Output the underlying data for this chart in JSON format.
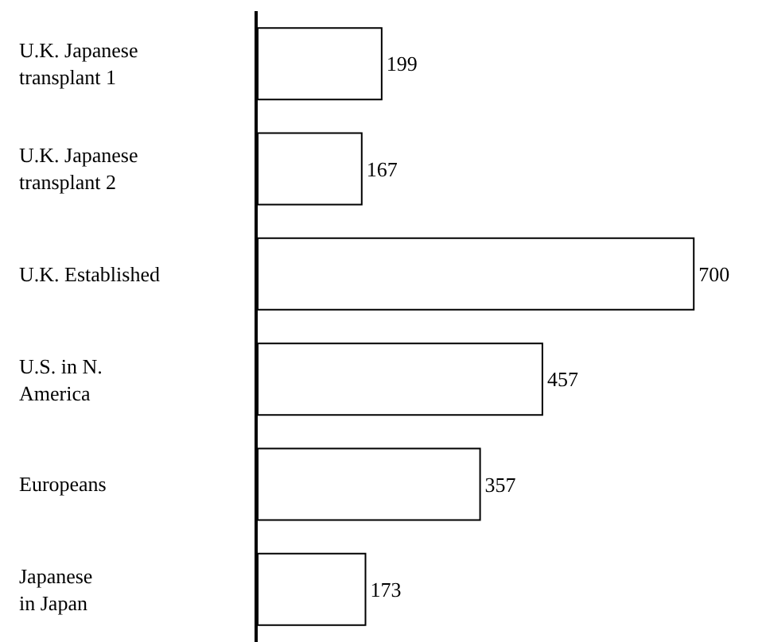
{
  "chart_data": {
    "type": "bar",
    "orientation": "horizontal",
    "categories": [
      "U.K. Japanese\ntransplant 1",
      "U.K. Japanese\ntransplant 2",
      "U.K. Established",
      "U.S. in N.\nAmerica",
      "Europeans",
      "Japanese\nin Japan"
    ],
    "values": [
      199,
      167,
      700,
      457,
      357,
      173
    ],
    "color": "#ffffff",
    "data_labels": true
  }
}
